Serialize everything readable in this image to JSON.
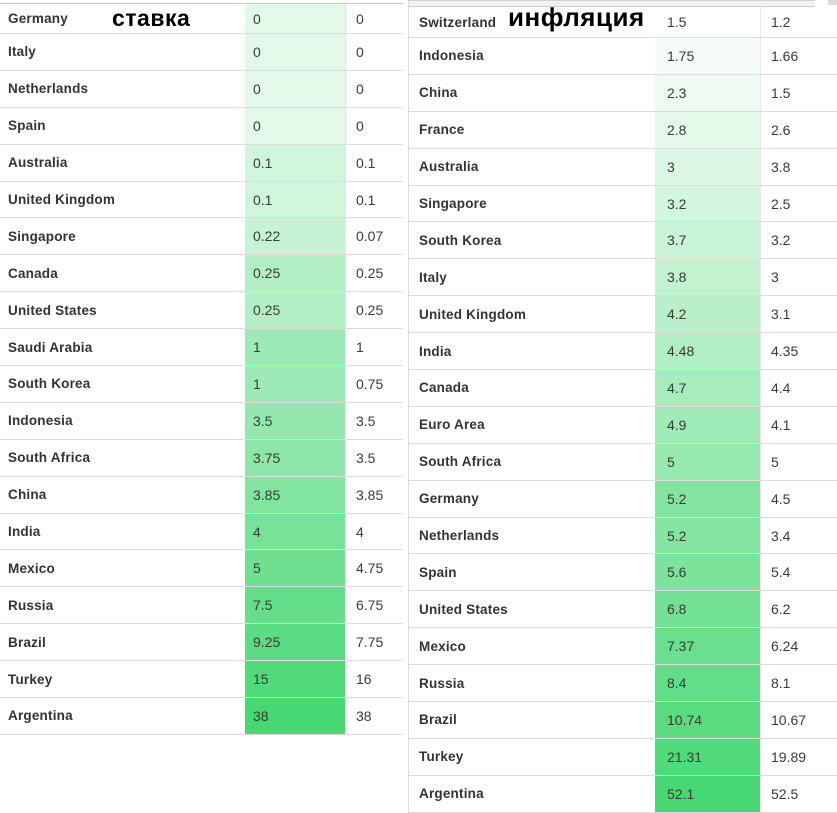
{
  "titles": {
    "left": "ставка",
    "right": "инфляция"
  },
  "colors": {
    "accent_green": "#47d873",
    "shade_start": "#ffffff",
    "row_border": "#dddddd",
    "cell_border": "#e7e7e7",
    "text": "#333333",
    "cut_strip_bg": "#f2f2f2"
  },
  "chart_data": [
    {
      "type": "table",
      "title": "ставка",
      "note_visible_columns": [
        "country",
        "value_1_heatmap",
        "value_2"
      ],
      "rows": [
        [
          "Germany",
          0,
          0
        ],
        [
          "Italy",
          0,
          0
        ],
        [
          "Netherlands",
          0,
          0
        ],
        [
          "Spain",
          0,
          0
        ],
        [
          "Australia",
          0.1,
          0.1
        ],
        [
          "United Kingdom",
          0.1,
          0.1
        ],
        [
          "Singapore",
          0.22,
          0.07
        ],
        [
          "Canada",
          0.25,
          0.25
        ],
        [
          "United States",
          0.25,
          0.25
        ],
        [
          "Saudi Arabia",
          1,
          1
        ],
        [
          "South Korea",
          1,
          0.75
        ],
        [
          "Indonesia",
          3.5,
          3.5
        ],
        [
          "South Africa",
          3.75,
          3.5
        ],
        [
          "China",
          3.85,
          3.85
        ],
        [
          "India",
          4,
          4
        ],
        [
          "Mexico",
          5,
          4.75
        ],
        [
          "Russia",
          7.5,
          6.75
        ],
        [
          "Brazil",
          9.25,
          7.75
        ],
        [
          "Turkey",
          15,
          16
        ],
        [
          "Argentina",
          38,
          38
        ]
      ]
    },
    {
      "type": "table",
      "title": "инфляция",
      "note_visible_columns": [
        "country",
        "value_1_heatmap",
        "value_2"
      ],
      "rows": [
        [
          "Switzerland",
          1.5,
          1.2
        ],
        [
          "Indonesia",
          1.75,
          1.66
        ],
        [
          "China",
          2.3,
          1.5
        ],
        [
          "France",
          2.8,
          2.6
        ],
        [
          "Australia",
          3,
          3.8
        ],
        [
          "Singapore",
          3.2,
          2.5
        ],
        [
          "South Korea",
          3.7,
          3.2
        ],
        [
          "Italy",
          3.8,
          3
        ],
        [
          "United Kingdom",
          4.2,
          3.1
        ],
        [
          "India",
          4.48,
          4.35
        ],
        [
          "Canada",
          4.7,
          4.4
        ],
        [
          "Euro Area",
          4.9,
          4.1
        ],
        [
          "South Africa",
          5,
          5
        ],
        [
          "Germany",
          5.2,
          4.5
        ],
        [
          "Netherlands",
          5.2,
          3.4
        ],
        [
          "Spain",
          5.6,
          5.4
        ],
        [
          "United States",
          6.8,
          6.2
        ],
        [
          "Mexico",
          7.37,
          6.24
        ],
        [
          "Russia",
          8.4,
          8.1
        ],
        [
          "Brazil",
          10.74,
          10.67
        ],
        [
          "Turkey",
          21.31,
          19.89
        ],
        [
          "Argentina",
          52.1,
          52.5
        ]
      ]
    }
  ]
}
